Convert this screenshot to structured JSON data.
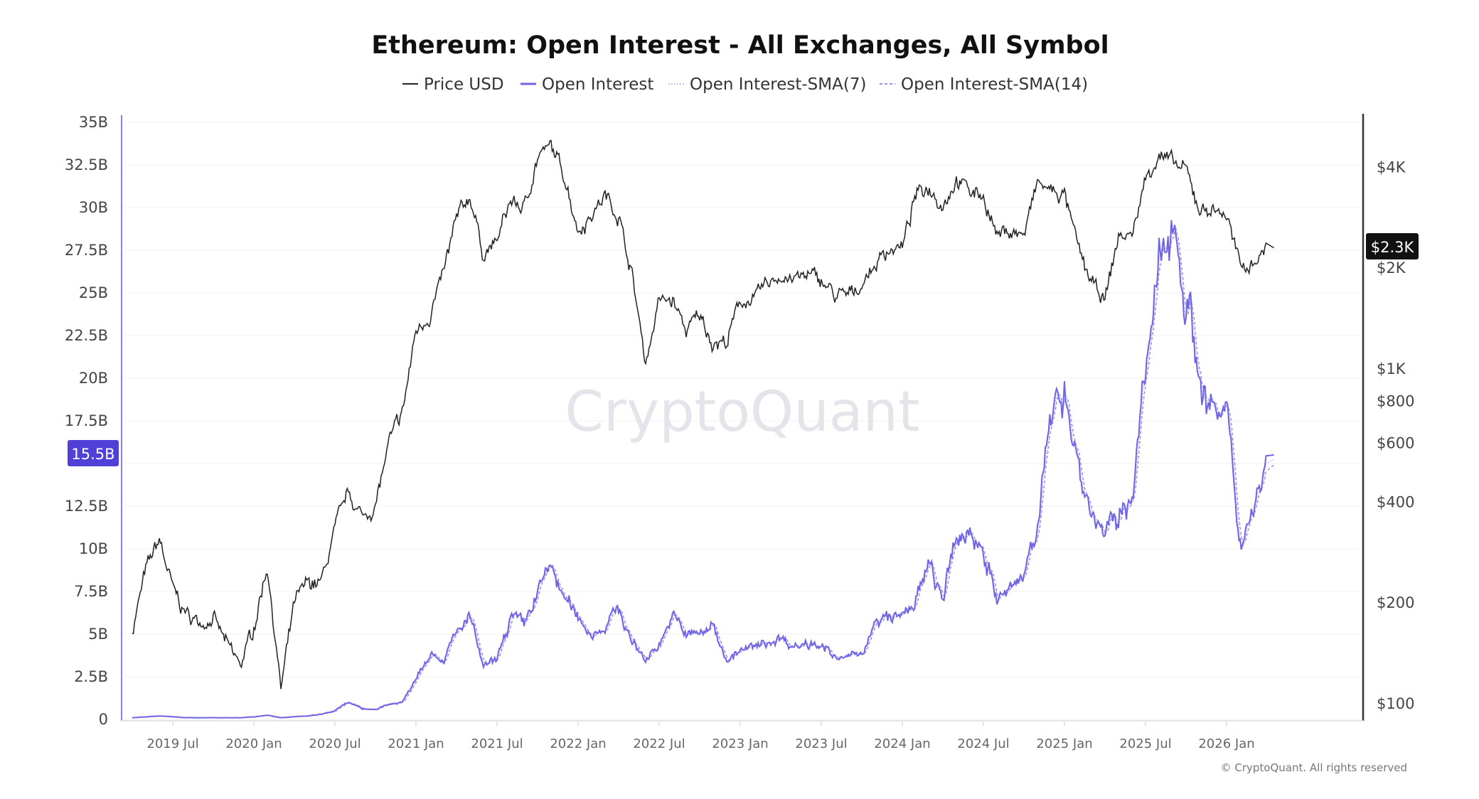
{
  "chart_data": {
    "type": "line",
    "title": "Ethereum: Open Interest - All Exchanges, All Symbol",
    "legend": {
      "placement": "top-center",
      "items": [
        {
          "name": "Price USD",
          "color": "#222222",
          "style": "solid"
        },
        {
          "name": "Open Interest",
          "color": "#6f63e6",
          "style": "solid"
        },
        {
          "name": "Open Interest-SMA(7)",
          "color": "#b8b2f2",
          "style": "dotted"
        },
        {
          "name": "Open Interest-SMA(14)",
          "color": "#9a92ee",
          "style": "dashed"
        }
      ]
    },
    "x_tick_labels": [
      "2019 Jul",
      "2020 Jan",
      "2020 Jul",
      "2021 Jan",
      "2021 Jul",
      "2022 Jan",
      "2022 Jul",
      "2023 Jan",
      "2023 Jul",
      "2024 Jan",
      "2024 Jul",
      "2025 Jan",
      "2025 Jul",
      "2026 Jan"
    ],
    "left_axis": {
      "ticks": [
        "0",
        "2.5B",
        "5B",
        "7.5B",
        "10B",
        "12.5B",
        "15B",
        "17.5B",
        "20B",
        "22.5B",
        "25B",
        "27.5B",
        "30B",
        "32.5B",
        "35B"
      ],
      "range": [
        0,
        35
      ],
      "unit": "B",
      "grid": true
    },
    "right_axis": {
      "ticks": [
        "$100",
        "$200",
        "$400",
        "$600",
        "$800",
        "$1K",
        "$2K",
        "$4K"
      ],
      "tick_values": [
        100,
        200,
        400,
        600,
        800,
        1000,
        2000,
        4000
      ],
      "scale": "log",
      "range": [
        100,
        5000
      ]
    },
    "current_labels": {
      "open_interest": "15.5B",
      "price": "$2.3K"
    },
    "dates": [
      "2019-04",
      "2019-05",
      "2019-06",
      "2019-07",
      "2019-08",
      "2019-09",
      "2019-10",
      "2019-11",
      "2019-12",
      "2020-01",
      "2020-02",
      "2020-03",
      "2020-04",
      "2020-05",
      "2020-06",
      "2020-07",
      "2020-08",
      "2020-09",
      "2020-10",
      "2020-11",
      "2020-12",
      "2021-01",
      "2021-02",
      "2021-03",
      "2021-04",
      "2021-05",
      "2021-06",
      "2021-07",
      "2021-08",
      "2021-09",
      "2021-10",
      "2021-11",
      "2021-12",
      "2022-01",
      "2022-02",
      "2022-03",
      "2022-04",
      "2022-05",
      "2022-06",
      "2022-07",
      "2022-08",
      "2022-09",
      "2022-10",
      "2022-11",
      "2022-12",
      "2023-01",
      "2023-02",
      "2023-03",
      "2023-04",
      "2023-05",
      "2023-06",
      "2023-07",
      "2023-08",
      "2023-09",
      "2023-10",
      "2023-11",
      "2023-12",
      "2024-01",
      "2024-02",
      "2024-03",
      "2024-04",
      "2024-05",
      "2024-06",
      "2024-07",
      "2024-08",
      "2024-09",
      "2024-10",
      "2024-11",
      "2024-12",
      "2025-01",
      "2025-02",
      "2025-03",
      "2025-04",
      "2025-05",
      "2025-06",
      "2025-07",
      "2025-08",
      "2025-09",
      "2025-10",
      "2025-11",
      "2025-12",
      "2026-01",
      "2026-02",
      "2026-03",
      "2026-04"
    ],
    "series": [
      {
        "name": "Price USD",
        "axis": "right",
        "values": [
          165,
          250,
          310,
          220,
          185,
          175,
          180,
          150,
          130,
          170,
          260,
          110,
          200,
          230,
          230,
          330,
          430,
          360,
          390,
          600,
          740,
          1300,
          1450,
          1900,
          2800,
          3300,
          2200,
          2400,
          3200,
          3000,
          4300,
          4600,
          3800,
          2600,
          2900,
          3300,
          2900,
          1900,
          1050,
          1600,
          1600,
          1300,
          1450,
          1200,
          1200,
          1600,
          1600,
          1800,
          1900,
          1850,
          1900,
          1850,
          1650,
          1650,
          1800,
          2050,
          2300,
          2300,
          3300,
          3500,
          3100,
          3700,
          3400,
          3300,
          2500,
          2600,
          2500,
          3600,
          3400,
          3300,
          2300,
          1800,
          1600,
          2500,
          2500,
          3700,
          4400,
          4100,
          3900,
          3000,
          3000,
          2900,
          2000,
          2100,
          2300
        ]
      },
      {
        "name": "Open Interest",
        "axis": "left",
        "values": [
          0.1,
          0.15,
          0.2,
          0.15,
          0.1,
          0.1,
          0.1,
          0.1,
          0.1,
          0.15,
          0.25,
          0.1,
          0.15,
          0.2,
          0.3,
          0.5,
          1.0,
          0.6,
          0.6,
          0.9,
          1.0,
          2.5,
          4.0,
          3.5,
          5.0,
          6.0,
          3.0,
          3.5,
          6.0,
          5.5,
          7.5,
          9.0,
          7.0,
          6.0,
          5.0,
          5.5,
          6.5,
          4.5,
          3.5,
          4.5,
          6.0,
          5.0,
          5.0,
          5.5,
          3.5,
          4.0,
          4.2,
          4.5,
          4.8,
          4.3,
          4.5,
          4.5,
          3.5,
          3.6,
          4.0,
          5.5,
          6.0,
          6.0,
          7.0,
          9.0,
          7.0,
          10.5,
          11.0,
          10.0,
          7.0,
          7.5,
          8.5,
          12.0,
          17.0,
          20.0,
          15.0,
          12.0,
          11.0,
          11.5,
          13.5,
          20.0,
          26.0,
          30.0,
          25.0,
          20.0,
          18.0,
          17.5,
          10.5,
          12.5,
          15.5
        ]
      }
    ]
  },
  "watermark": "CryptoQuant",
  "copyright": "© CryptoQuant. All rights reserved"
}
